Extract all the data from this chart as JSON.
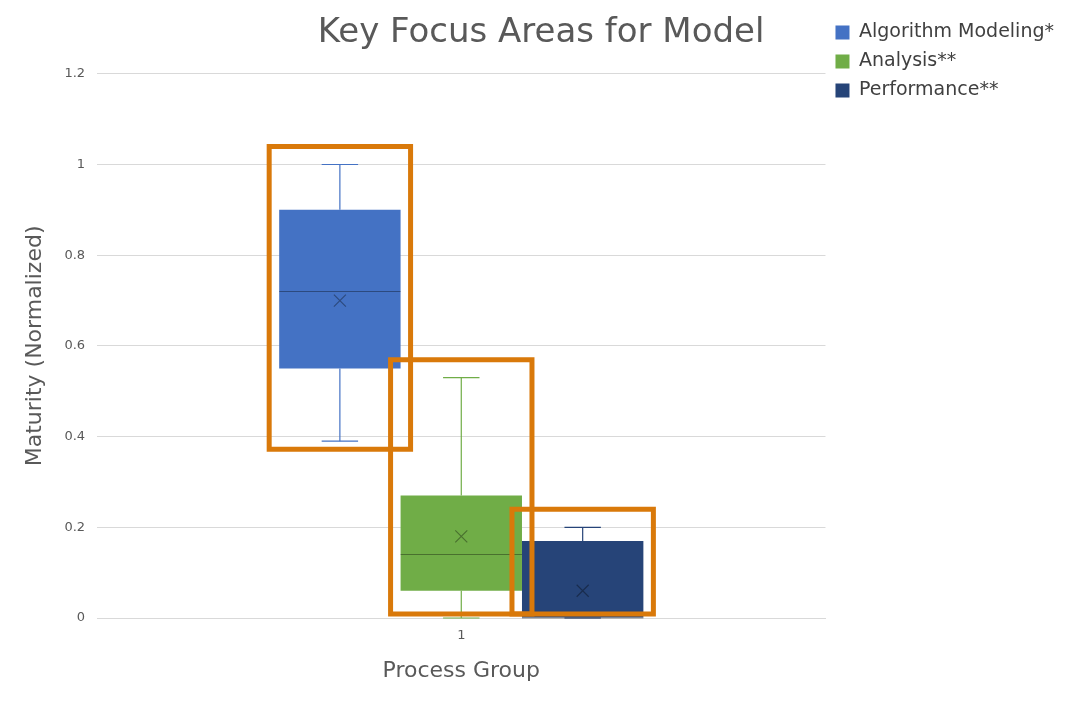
{
  "chart_data": {
    "type": "box",
    "title": "Key Focus Areas for Model",
    "xlabel": "Process Group",
    "ylabel": "Maturity (Normalized)",
    "categories": [
      "1"
    ],
    "series": [
      {
        "name": "Algorithm Modeling*",
        "color": "#4472c4",
        "boxes": [
          {
            "low": 0.39,
            "q1": 0.55,
            "median": 0.72,
            "q3": 0.9,
            "high": 1.0,
            "mean": 0.7
          }
        ]
      },
      {
        "name": "Analysis**",
        "color": "#70ad47",
        "boxes": [
          {
            "low": 0,
            "q1": 0.06,
            "median": 0.14,
            "q3": 0.27,
            "high": 0.53,
            "mean": 0.18
          }
        ]
      },
      {
        "name": "Performance**",
        "color": "#264478",
        "boxes": [
          {
            "low": 0,
            "q1": 0,
            "median": 0,
            "q3": 0.17,
            "high": 0.2,
            "mean": 0.06
          }
        ]
      }
    ],
    "ylim": [
      0,
      1.2
    ],
    "yticks": [
      0,
      0.2,
      0.4,
      0.6,
      0.8,
      1,
      1.2
    ],
    "grid": "y",
    "legend": "top right",
    "marker": "cross"
  }
}
